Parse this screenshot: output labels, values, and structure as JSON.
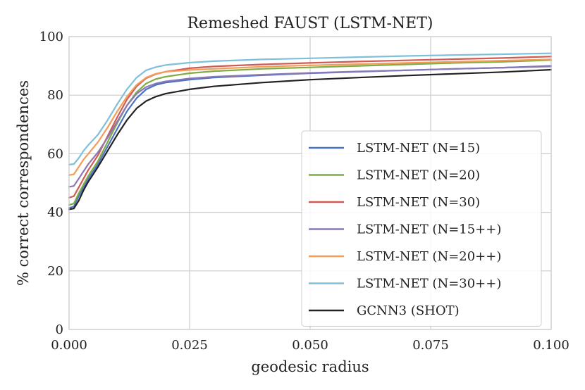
{
  "chart_data": {
    "type": "line",
    "title": "Remeshed FAUST (LSTM-NET)",
    "xlabel": "geodesic radius",
    "ylabel": "% correct correspondences",
    "xlim": [
      0,
      0.1
    ],
    "ylim": [
      0,
      100
    ],
    "xticks": [
      0.0,
      0.025,
      0.05,
      0.075,
      0.1
    ],
    "xtick_labels": [
      "0.000",
      "0.025",
      "0.050",
      "0.075",
      "0.100"
    ],
    "yticks": [
      0,
      20,
      40,
      60,
      80,
      100
    ],
    "ytick_labels": [
      "0",
      "20",
      "40",
      "60",
      "80",
      "100"
    ],
    "grid": true,
    "legend_position": "lower-right",
    "x": [
      0.0,
      0.001,
      0.002,
      0.003,
      0.004,
      0.006,
      0.008,
      0.01,
      0.012,
      0.014,
      0.016,
      0.018,
      0.02,
      0.025,
      0.03,
      0.04,
      0.05,
      0.06,
      0.07,
      0.08,
      0.09,
      0.1
    ],
    "series": [
      {
        "name": "LSTM-NET (N=15)",
        "color": "#4a72c4",
        "values": [
          41.5,
          42.0,
          45.5,
          48.5,
          51.5,
          56.5,
          62.5,
          68.5,
          74.5,
          79.0,
          82.0,
          83.5,
          84.3,
          85.3,
          86.0,
          86.8,
          87.5,
          88.0,
          88.5,
          89.0,
          89.4,
          90.0
        ]
      },
      {
        "name": "LSTM-NET (N=20)",
        "color": "#7fac45",
        "values": [
          42.5,
          43.0,
          46.5,
          49.5,
          52.5,
          57.5,
          64.0,
          70.5,
          76.5,
          81.0,
          84.0,
          85.5,
          86.3,
          87.5,
          88.2,
          89.0,
          89.5,
          90.0,
          90.5,
          91.0,
          91.4,
          92.0
        ]
      },
      {
        "name": "LSTM-NET (N=30)",
        "color": "#d05a54",
        "values": [
          45.0,
          45.5,
          48.5,
          51.5,
          54.5,
          59.5,
          66.0,
          72.5,
          78.5,
          83.0,
          85.8,
          87.2,
          88.0,
          89.2,
          89.8,
          90.5,
          91.0,
          91.5,
          91.9,
          92.3,
          92.7,
          93.2
        ]
      },
      {
        "name": "LSTM-NET (N=15++)",
        "color": "#8a78b5",
        "values": [
          48.7,
          49.0,
          51.5,
          54.0,
          56.5,
          60.5,
          65.5,
          71.0,
          76.5,
          80.5,
          82.8,
          84.0,
          84.7,
          85.7,
          86.3,
          87.0,
          87.6,
          88.1,
          88.5,
          89.0,
          89.4,
          89.8
        ]
      },
      {
        "name": "LSTM-NET (N=20++)",
        "color": "#f39c58",
        "values": [
          52.7,
          53.0,
          55.5,
          58.0,
          60.0,
          64.0,
          69.0,
          74.5,
          79.5,
          83.5,
          86.0,
          87.3,
          88.0,
          88.6,
          89.0,
          89.7,
          90.2,
          90.6,
          91.0,
          91.4,
          91.8,
          92.2
        ]
      },
      {
        "name": "LSTM-NET (N=30++)",
        "color": "#7ebfdc",
        "values": [
          56.3,
          56.5,
          58.5,
          61.0,
          63.0,
          66.5,
          71.5,
          77.0,
          82.0,
          86.0,
          88.5,
          89.6,
          90.3,
          91.1,
          91.6,
          92.2,
          92.6,
          93.0,
          93.4,
          93.7,
          94.0,
          94.3
        ]
      },
      {
        "name": "GCNN3 (SHOT)",
        "color": "#222222",
        "values": [
          41.0,
          41.3,
          44.0,
          47.5,
          50.5,
          55.5,
          61.0,
          66.5,
          71.5,
          75.5,
          78.0,
          79.5,
          80.5,
          82.0,
          83.0,
          84.3,
          85.3,
          86.0,
          86.7,
          87.3,
          87.9,
          88.7
        ]
      }
    ]
  }
}
